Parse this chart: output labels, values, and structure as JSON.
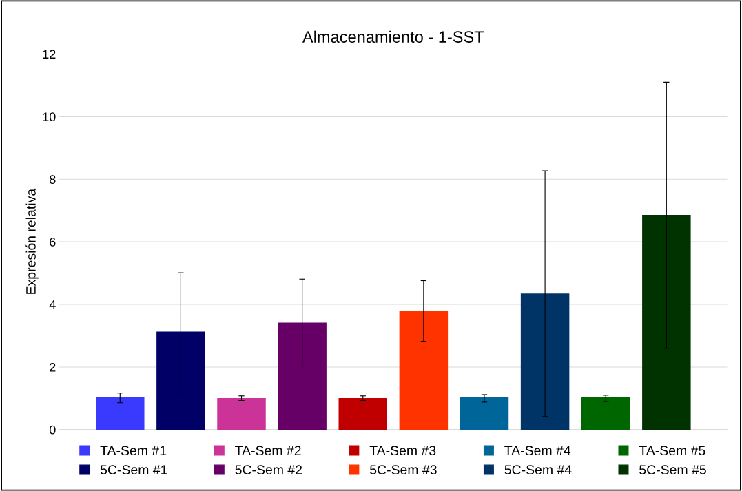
{
  "chart_data": {
    "type": "bar",
    "title": "Almacenamiento - 1-SST",
    "ylabel": "Expresión relativa",
    "categories": [
      null,
      null,
      null,
      null,
      null,
      null,
      null,
      null,
      null,
      null
    ],
    "series": [
      {
        "name": "TA-Sem #1",
        "color": "#3a3aff",
        "values": [
          1.04,
          null,
          null,
          null,
          null,
          null,
          null,
          null,
          null,
          null
        ],
        "errors": [
          [
            0.86,
            1.17
          ],
          null,
          null,
          null,
          null,
          null,
          null,
          null,
          null,
          null
        ]
      },
      {
        "name": "5C-Sem #1",
        "color": "#000066",
        "values": [
          null,
          3.13,
          null,
          null,
          null,
          null,
          null,
          null,
          null,
          null
        ],
        "errors": [
          null,
          [
            1.17,
            5.01
          ],
          null,
          null,
          null,
          null,
          null,
          null,
          null,
          null
        ]
      },
      {
        "name": "TA-Sem #2",
        "color": "#cc3399",
        "values": [
          null,
          null,
          1.01,
          null,
          null,
          null,
          null,
          null,
          null,
          null
        ],
        "errors": [
          null,
          null,
          [
            0.93,
            1.08
          ],
          null,
          null,
          null,
          null,
          null,
          null,
          null
        ]
      },
      {
        "name": "5C-Sem #2",
        "color": "#660066",
        "values": [
          null,
          null,
          null,
          3.42,
          null,
          null,
          null,
          null,
          null,
          null
        ],
        "errors": [
          null,
          null,
          null,
          [
            2.03,
            4.81
          ],
          null,
          null,
          null,
          null,
          null,
          null
        ]
      },
      {
        "name": "TA-Sem #3",
        "color": "#c00000",
        "values": [
          null,
          null,
          null,
          null,
          1.01,
          null,
          null,
          null,
          null,
          null
        ],
        "errors": [
          null,
          null,
          null,
          null,
          [
            0.93,
            1.08
          ],
          null,
          null,
          null,
          null,
          null
        ]
      },
      {
        "name": "5C-Sem #3",
        "color": "#ff3300",
        "values": [
          null,
          null,
          null,
          null,
          null,
          3.79,
          null,
          null,
          null,
          null
        ],
        "errors": [
          null,
          null,
          null,
          null,
          null,
          [
            2.82,
            4.76
          ],
          null,
          null,
          null,
          null
        ]
      },
      {
        "name": "TA-Sem #4",
        "color": "#006699",
        "values": [
          null,
          null,
          null,
          null,
          null,
          null,
          1.04,
          null,
          null,
          null
        ],
        "errors": [
          null,
          null,
          null,
          null,
          null,
          null,
          [
            0.88,
            1.12
          ],
          null,
          null,
          null
        ]
      },
      {
        "name": "5C-Sem #4",
        "color": "#003366",
        "values": [
          null,
          null,
          null,
          null,
          null,
          null,
          null,
          4.35,
          null,
          null
        ],
        "errors": [
          null,
          null,
          null,
          null,
          null,
          null,
          null,
          [
            0.42,
            8.27
          ],
          null,
          null
        ]
      },
      {
        "name": "TA-Sem #5",
        "color": "#006600",
        "values": [
          null,
          null,
          null,
          null,
          null,
          null,
          null,
          null,
          1.04,
          null
        ],
        "errors": [
          null,
          null,
          null,
          null,
          null,
          null,
          null,
          null,
          [
            0.9,
            1.1
          ],
          null
        ]
      },
      {
        "name": "5C-Sem #5",
        "color": "#003300",
        "values": [
          null,
          null,
          null,
          null,
          null,
          null,
          null,
          null,
          null,
          6.86
        ],
        "errors": [
          null,
          null,
          null,
          null,
          null,
          null,
          null,
          null,
          null,
          [
            2.6,
            11.1
          ]
        ]
      }
    ],
    "ylim": [
      0,
      12
    ],
    "yticks": [
      0,
      2,
      4,
      6,
      8,
      10,
      12
    ],
    "grid": "y",
    "legend": "bottom"
  }
}
